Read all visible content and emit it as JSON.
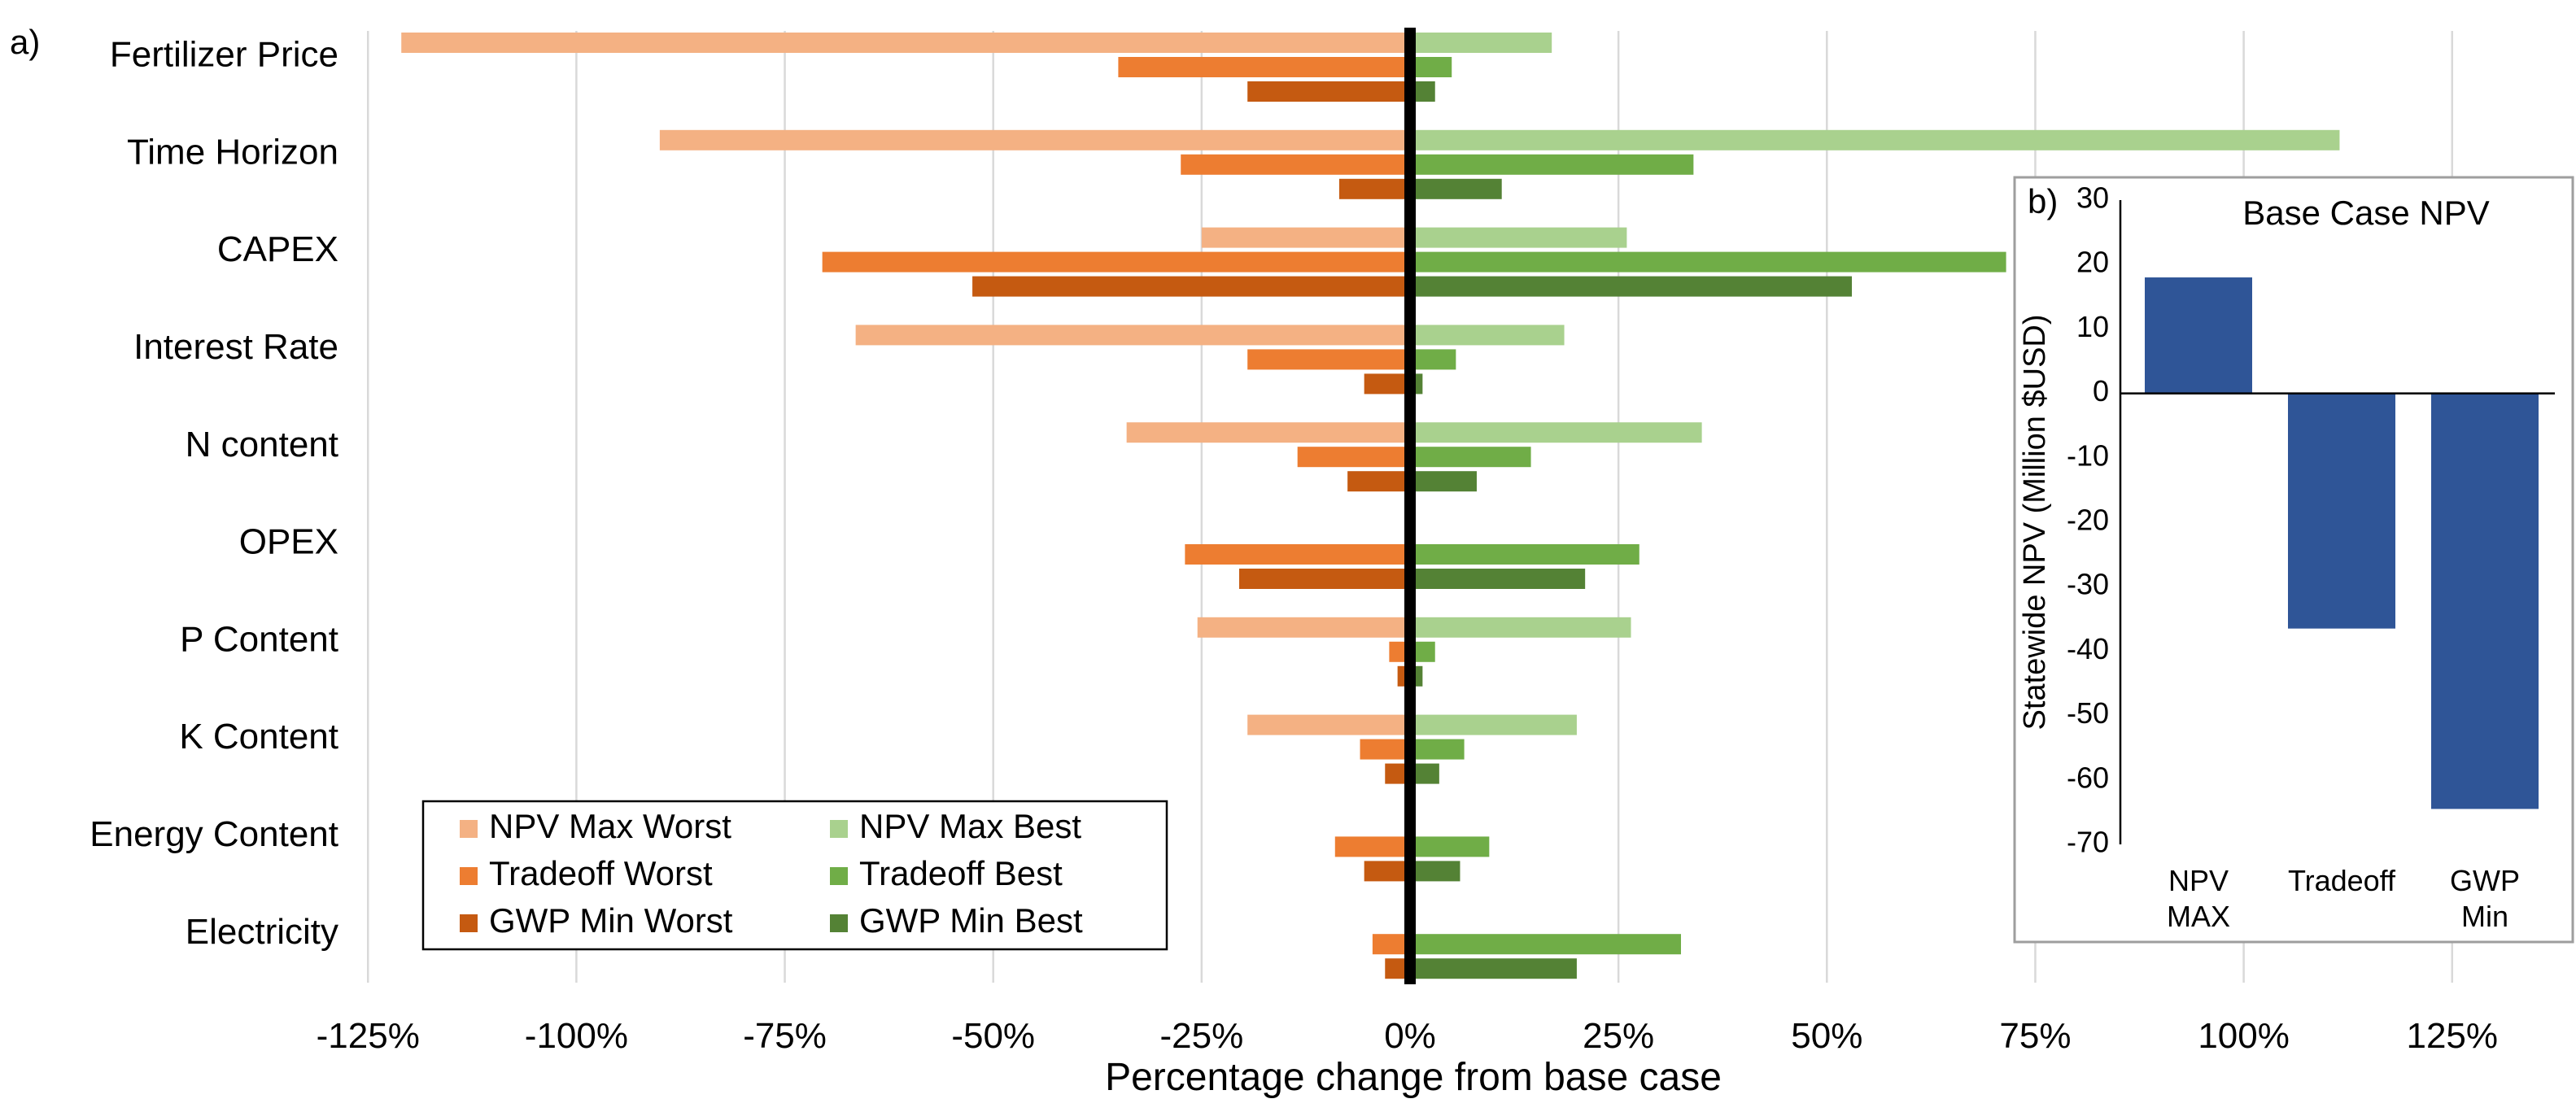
{
  "panel_a": {
    "letter": "a)"
  },
  "panel_b": {
    "letter": "b)"
  },
  "chart_data": [
    {
      "type": "bar",
      "orientation": "horizontal",
      "title": "",
      "xlabel": "Percentage change from base case",
      "ylabel": "",
      "xlim": [
        -130,
        140
      ],
      "x_ticks": [
        -125,
        -100,
        -75,
        -50,
        -25,
        0,
        25,
        50,
        75,
        100,
        125
      ],
      "x_tick_labels": [
        "-125%",
        "-100%",
        "-75%",
        "-50%",
        "-25%",
        "0%",
        "25%",
        "50%",
        "75%",
        "100%",
        "125%"
      ],
      "grid": true,
      "legend_position": "bottom-left",
      "categories": [
        "Fertilizer Price",
        "Time Horizon",
        "CAPEX",
        "Interest Rate",
        "N content",
        "OPEX",
        "P Content",
        "K Content",
        "Energy Content",
        "Electricity"
      ],
      "series": [
        {
          "name": "NPV Max Worst",
          "color": "#f4b183",
          "values": [
            -121,
            -90,
            -25,
            -66.5,
            -34,
            null,
            -25.5,
            -19.5,
            null,
            null
          ]
        },
        {
          "name": "Tradeoff Worst",
          "color": "#ed7d31",
          "values": [
            -35,
            -27.5,
            -70.5,
            -19.5,
            -13.5,
            -27,
            -2.5,
            -6,
            -9,
            -4.5
          ]
        },
        {
          "name": "GWP Min Worst",
          "color": "#c55a11",
          "values": [
            -19.5,
            -8.5,
            -52.5,
            -5.5,
            -7.5,
            -20.5,
            -1.5,
            -3,
            -5.5,
            -3
          ]
        },
        {
          "name": "NPV Max Best",
          "color": "#a9d18e",
          "values": [
            17,
            111.5,
            26,
            18.5,
            35,
            null,
            26.5,
            20,
            null,
            null
          ]
        },
        {
          "name": "Tradeoff Best",
          "color": "#70ad47",
          "values": [
            5,
            34,
            71.5,
            5.5,
            14.5,
            27.5,
            3,
            6.5,
            9.5,
            32.5
          ]
        },
        {
          "name": "GWP Min Best",
          "color": "#548235",
          "values": [
            3,
            11,
            53,
            1.5,
            8,
            21,
            1.5,
            3.5,
            6,
            20
          ]
        }
      ]
    },
    {
      "type": "bar",
      "title": "Base Case NPV",
      "xlabel": "",
      "ylabel": "Statewide NPV (Million $USD)",
      "ylim": [
        -70,
        30
      ],
      "y_ticks": [
        30,
        20,
        10,
        0,
        -10,
        -20,
        -30,
        -40,
        -50,
        -60,
        -70
      ],
      "y_tick_labels": [
        "30",
        "20",
        "10",
        "0",
        "-10",
        "-20",
        "-30",
        "-40",
        "-50",
        "-60",
        "-70"
      ],
      "grid": false,
      "categories": [
        [
          "NPV",
          "MAX"
        ],
        [
          "Tradeoff"
        ],
        [
          "GWP",
          "Min"
        ]
      ],
      "values": [
        18,
        -36.5,
        -64.5
      ],
      "color": "#2f5597"
    }
  ]
}
